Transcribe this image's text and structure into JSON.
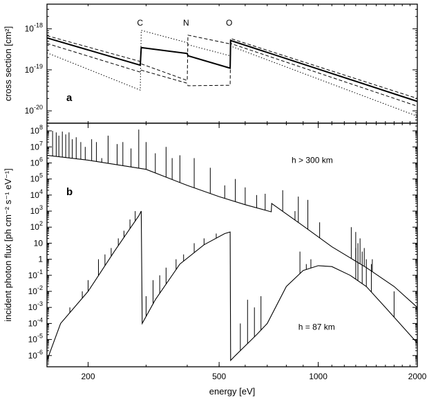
{
  "chart_data": [
    {
      "panel": "a",
      "type": "line",
      "ylabel": "cross section  [cm²]",
      "yscale": "log",
      "xscale": "log",
      "xlim": [
        150,
        2000
      ],
      "ylim": [
        5e-21,
        4e-18
      ],
      "yticks": [
        1e-20,
        1e-19,
        1e-18
      ],
      "ytick_labels": [
        {
          "m": "10",
          "e": "-20"
        },
        {
          "m": "10",
          "e": "-19"
        },
        {
          "m": "10",
          "e": "-18"
        }
      ],
      "edge_labels": [
        {
          "text": "C",
          "x": 290
        },
        {
          "text": "N",
          "x": 400
        },
        {
          "text": "O",
          "x": 540
        }
      ],
      "series": [
        {
          "style": "solid",
          "points": [
            [
              150,
              6e-19
            ],
            [
              288,
              1.3e-19
            ],
            [
              290,
              3.5e-19
            ],
            [
              400,
              2.5e-19
            ],
            [
              402,
              2.2e-19
            ],
            [
              540,
              1.1e-19
            ],
            [
              542,
              5.2e-19
            ],
            [
              2000,
              1.7e-20
            ]
          ]
        },
        {
          "style": "dashed",
          "points": [
            [
              150,
              6.8e-19
            ],
            [
              288,
              1.6e-19
            ],
            [
              290,
              1.4e-19
            ],
            [
              400,
              5.5e-20
            ],
            [
              402,
              7e-19
            ],
            [
              540,
              4.3e-19
            ],
            [
              542,
              5.8e-19
            ],
            [
              2000,
              2e-20
            ]
          ]
        },
        {
          "style": "dashed",
          "points": [
            [
              150,
              4.4e-19
            ],
            [
              288,
              8.8e-20
            ],
            [
              290,
              9.8e-20
            ],
            [
              400,
              4.7e-20
            ],
            [
              402,
              4.1e-20
            ],
            [
              540,
              4.2e-20
            ],
            [
              542,
              4.4e-19
            ],
            [
              2000,
              1.3e-20
            ]
          ]
        },
        {
          "style": "dotted",
          "points": [
            [
              150,
              2.6e-19
            ],
            [
              288,
              3.2e-20
            ],
            [
              290,
              9.2e-19
            ],
            [
              400,
              4.6e-19
            ],
            [
              402,
              4.1e-19
            ],
            [
              540,
              2.2e-19
            ],
            [
              542,
              3.8e-19
            ],
            [
              2000,
              7.4e-21
            ]
          ]
        }
      ]
    },
    {
      "panel": "b",
      "type": "line",
      "xlabel": "energy  [eV]",
      "ylabel": "incident photon flux  [ph cm⁻² s⁻¹ eV⁻¹]",
      "xscale": "log",
      "yscale": "log",
      "xlim": [
        150,
        2000
      ],
      "ylim": [
        2e-07,
        300000000.0
      ],
      "xticks": [
        200,
        500,
        1000,
        2000
      ],
      "xtick_labels": [
        "200",
        "500",
        "1000",
        "2000"
      ],
      "yticks": [
        1e-06,
        1e-05,
        0.0001,
        0.001,
        0.01,
        0.1,
        1,
        10,
        100,
        1000,
        10000.0,
        100000.0,
        1000000.0,
        10000000.0,
        100000000.0
      ],
      "ytick_labels": [
        {
          "m": "10",
          "e": "-6"
        },
        {
          "m": "10",
          "e": "-5"
        },
        {
          "m": "10",
          "e": "-4"
        },
        {
          "m": "10",
          "e": "-3"
        },
        {
          "m": "10",
          "e": "-2"
        },
        {
          "m": "10",
          "e": "-1"
        },
        {
          "m": "1",
          "e": ""
        },
        {
          "m": "10",
          "e": ""
        },
        {
          "m": "10",
          "e": "2"
        },
        {
          "m": "10",
          "e": "3"
        },
        {
          "m": "10",
          "e": "4"
        },
        {
          "m": "10",
          "e": "5"
        },
        {
          "m": "10",
          "e": "6"
        },
        {
          "m": "10",
          "e": "7"
        },
        {
          "m": "10",
          "e": "8"
        }
      ],
      "annotations": [
        {
          "text": "h > 300 km",
          "x": 830,
          "y": 1000000.0
        },
        {
          "text": "h = 87 km",
          "x": 870,
          "y": 4e-05
        }
      ],
      "series": [
        {
          "name": "h > 300 km",
          "continuum": [
            [
              150,
              3000000.0
            ],
            [
              200,
              1500000.0
            ],
            [
              300,
              400000.0
            ],
            [
              400,
              40000.0
            ],
            [
              500,
              8000.0
            ],
            [
              600,
              2500.0
            ],
            [
              720,
              900
            ],
            [
              722,
              3000
            ],
            [
              900,
              120
            ],
            [
              1100,
              6
            ],
            [
              1400,
              0.3
            ],
            [
              1700,
              0.02
            ],
            [
              2000,
              0.001
            ]
          ],
          "spikes": [
            [
              156,
              100000000.0
            ],
            [
              160,
              80000000.0
            ],
            [
              163,
              50000000.0
            ],
            [
              167,
              90000000.0
            ],
            [
              171,
              60000000.0
            ],
            [
              175,
              80000000.0
            ],
            [
              179,
              30000000.0
            ],
            [
              184,
              40000000.0
            ],
            [
              190,
              20000000.0
            ],
            [
              196,
              10000000.0
            ],
            [
              205,
              30000000.0
            ],
            [
              212,
              20000000.0
            ],
            [
              220,
              2000000.0
            ],
            [
              230,
              50000000.0
            ],
            [
              245,
              15000000.0
            ],
            [
              255,
              20000000.0
            ],
            [
              270,
              8000000.0
            ],
            [
              285,
              120000000.0
            ],
            [
              300,
              20000000.0
            ],
            [
              320,
              4000000.0
            ],
            [
              345,
              10000000.0
            ],
            [
              360,
              2000000.0
            ],
            [
              380,
              3000000.0
            ],
            [
              420,
              2000000.0
            ],
            [
              470,
              500000.0
            ],
            [
              520,
              40000.0
            ],
            [
              560,
              100000.0
            ],
            [
              600,
              30000.0
            ],
            [
              650,
              10000.0
            ],
            [
              690,
              12000.0
            ],
            [
              780,
              20000.0
            ],
            [
              850,
              1000.0
            ],
            [
              870,
              8000.0
            ],
            [
              930,
              5000.0
            ],
            [
              1010,
              200
            ],
            [
              1260,
              100
            ],
            [
              1300,
              50
            ],
            [
              1340,
              20
            ],
            [
              1380,
              5
            ],
            [
              1460,
              1
            ],
            [
              1520,
              0.1
            ]
          ]
        },
        {
          "name": "h = 87 km",
          "continuum": [
            [
              150,
              5e-07
            ],
            [
              165,
              0.0001
            ],
            [
              200,
              0.01
            ],
            [
              240,
              3
            ],
            [
              270,
              100
            ],
            [
              285,
              500
            ],
            [
              290,
              1000.0
            ],
            [
              292,
              0.0001
            ],
            [
              320,
              0.003
            ],
            [
              380,
              0.5
            ],
            [
              450,
              8
            ],
            [
              520,
              40
            ],
            [
              540,
              50
            ],
            [
              542,
              5e-07
            ],
            [
              560,
              1e-06
            ],
            [
              650,
              2e-05
            ],
            [
              700,
              0.0001
            ],
            [
              800,
              0.02
            ],
            [
              900,
              0.2
            ],
            [
              1000,
              0.4
            ],
            [
              1100,
              0.35
            ],
            [
              1250,
              0.1
            ],
            [
              1400,
              0.02
            ],
            [
              1600,
              0.001
            ],
            [
              2000,
              6e-06
            ]
          ],
          "spikes": [
            [
              160,
              1e-06
            ],
            [
              165,
              1e-05
            ],
            [
              170,
              0.0001
            ],
            [
              176,
              0.001
            ],
            [
              183,
              0.001
            ],
            [
              192,
              0.01
            ],
            [
              200,
              0.05
            ],
            [
              215,
              1
            ],
            [
              225,
              2
            ],
            [
              235,
              5
            ],
            [
              247,
              20
            ],
            [
              257,
              60
            ],
            [
              268,
              300
            ],
            [
              278,
              1000.0
            ],
            [
              300,
              0.005
            ],
            [
              315,
              0.05
            ],
            [
              330,
              0.1
            ],
            [
              345,
              0.3
            ],
            [
              370,
              1
            ],
            [
              390,
              2
            ],
            [
              420,
              10
            ],
            [
              450,
              20
            ],
            [
              490,
              40
            ],
            [
              580,
              0.0001
            ],
            [
              610,
              0.003
            ],
            [
              640,
              0.001
            ],
            [
              670,
              0.005
            ],
            [
              880,
              3
            ],
            [
              920,
              0.5
            ],
            [
              950,
              1
            ],
            [
              1300,
              5
            ],
            [
              1320,
              10
            ],
            [
              1360,
              3
            ],
            [
              1400,
              1
            ],
            [
              1450,
              0.5
            ],
            [
              1700,
              0.01
            ]
          ]
        }
      ]
    }
  ]
}
